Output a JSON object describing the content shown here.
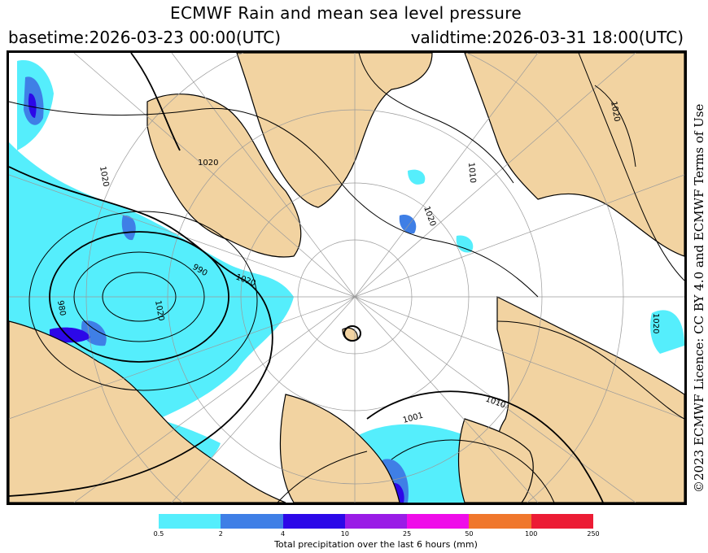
{
  "title": "ECMWF Rain and mean sea level pressure",
  "basetime": "basetime:2026-03-23 00:00(UTC)",
  "validtime": "validtime:2026-03-31 18:00(UTC)",
  "licence": "©2023 ECMWF Licence: CC BY 4.0 and ECMWF Terms of Use",
  "legend": {
    "label": "Total precipitation over the last 6 hours (mm)",
    "ticks": [
      "0.5",
      "2",
      "4",
      "10",
      "25",
      "50",
      "100",
      "250"
    ],
    "colors": [
      "#55eefc",
      "#3f7fe6",
      "#2c08e8",
      "#9a1ce6",
      "#ef0ce9",
      "#f0772c",
      "#ec1c34"
    ]
  },
  "map": {
    "isobar_labels": [
      "1020",
      "1020",
      "1020",
      "1020",
      "1020",
      "1020",
      "1010",
      "1010",
      "1001",
      "990",
      "980",
      "1020"
    ],
    "colors": {
      "land": "#f2d3a1",
      "sea": "#ffffff",
      "precip_light": "#55eefc",
      "precip_mid": "#3f7fe6",
      "precip_heavy": "#2c08e8"
    }
  }
}
